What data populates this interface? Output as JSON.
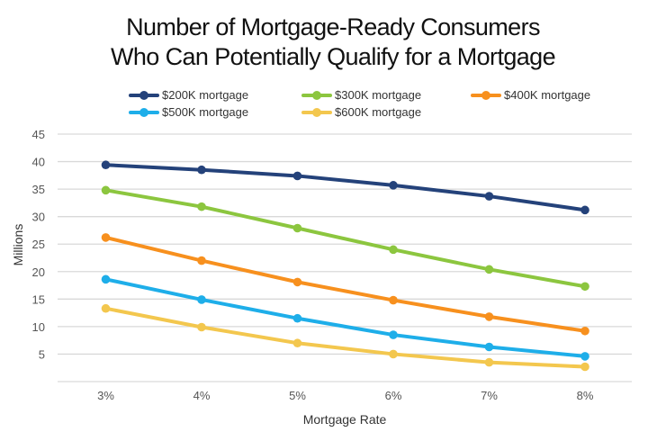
{
  "chart_data": {
    "type": "line",
    "title": [
      "Number of Mortgage-Ready Consumers",
      "Who Can Potentially Qualify for a Mortgage"
    ],
    "xlabel": "Mortgage Rate",
    "ylabel": "Millions",
    "categories": [
      "3%",
      "4%",
      "5%",
      "6%",
      "7%",
      "8%"
    ],
    "ylim": [
      0,
      45
    ],
    "yticks": [
      5,
      10,
      15,
      20,
      25,
      30,
      35,
      40,
      45
    ],
    "grid": true,
    "legend_position": "top",
    "series": [
      {
        "name": "$200K mortgage",
        "color": "#24427a",
        "values": [
          39.4,
          38.5,
          37.4,
          35.7,
          33.7,
          31.2
        ]
      },
      {
        "name": "$300K mortgage",
        "color": "#8cc63f",
        "values": [
          34.8,
          31.8,
          27.9,
          24.0,
          20.4,
          17.3
        ]
      },
      {
        "name": "$400K mortgage",
        "color": "#f7901e",
        "values": [
          26.2,
          22.0,
          18.1,
          14.8,
          11.8,
          9.2
        ]
      },
      {
        "name": "$500K mortgage",
        "color": "#1eaee9",
        "values": [
          18.6,
          14.9,
          11.5,
          8.5,
          6.3,
          4.6
        ]
      },
      {
        "name": "$600K mortgage",
        "color": "#f3c74e",
        "values": [
          13.3,
          9.9,
          7.0,
          5.0,
          3.5,
          2.7
        ]
      }
    ]
  }
}
